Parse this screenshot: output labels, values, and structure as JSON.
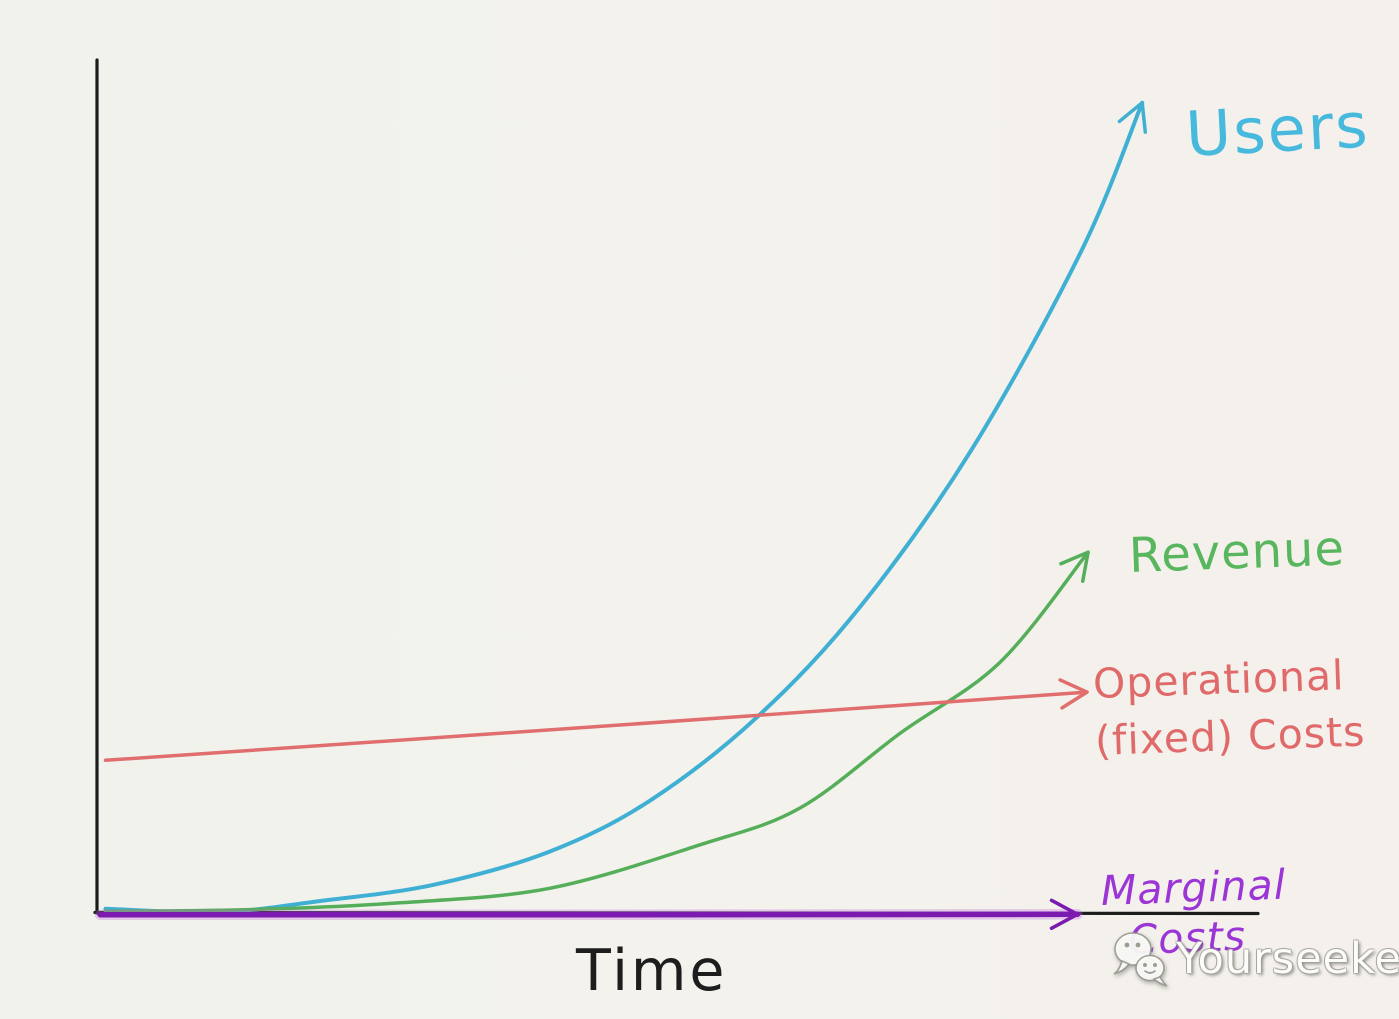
{
  "page": {
    "background": "#f3f2ec",
    "axis_color": "#1c1c1c"
  },
  "chart_data": {
    "type": "line",
    "style": "hand-drawn whiteboard sketch, qualitative (no numeric ticks)",
    "title": "",
    "xlabel": "Time",
    "ylabel": "",
    "x_range": [
      0,
      100
    ],
    "y_range": [
      0,
      100
    ],
    "grid": false,
    "legend": "inline colored labels at line tips, each line ends in an arrowhead",
    "series": [
      {
        "name": "Users",
        "color": "#3fb0d4",
        "stroke_width": 4,
        "arrow": true,
        "shape": "exponential growth, steepest curve",
        "points": [
          [
            0.8,
            0.5
          ],
          [
            11.6,
            0.1
          ],
          [
            21,
            1.4
          ],
          [
            31.7,
            3.3
          ],
          [
            42.7,
            7.2
          ],
          [
            52.2,
            13.2
          ],
          [
            62.3,
            23
          ],
          [
            72,
            35.9
          ],
          [
            82.5,
            54.3
          ],
          [
            92.9,
            77.7
          ],
          [
            98.6,
            95
          ]
        ]
      },
      {
        "name": "Revenue",
        "color": "#55ae59",
        "stroke_width": 3.5,
        "arrow": true,
        "shape": "exponential growth, lags Users",
        "points": [
          [
            0.8,
            0.2
          ],
          [
            14.4,
            0.4
          ],
          [
            28.6,
            1.2
          ],
          [
            42.7,
            2.9
          ],
          [
            56.9,
            8
          ],
          [
            66.3,
            12.3
          ],
          [
            75.8,
            21.1
          ],
          [
            85.2,
            29.4
          ],
          [
            93.5,
            42.3
          ]
        ]
      },
      {
        "name": "Operational (fixed) Costs",
        "color": "#e06e6e",
        "stroke_width": 3.5,
        "arrow": true,
        "shape": "nearly flat straight line, slight upward slope; crossed by Users then Revenue",
        "points": [
          [
            0.8,
            17.9
          ],
          [
            50,
            22.1
          ],
          [
            93.4,
            25.9
          ]
        ]
      },
      {
        "name": "Marginal Costs",
        "color": "#7a1aae",
        "halo": "#c06ee0",
        "stroke_width": 5.5,
        "arrow": true,
        "shape": "flat at zero, drawn along the x-axis",
        "points": [
          [
            0.3,
            -0.2
          ],
          [
            50,
            -0.2
          ],
          [
            92.5,
            -0.15
          ]
        ]
      }
    ]
  },
  "labels": {
    "users": {
      "text": "Users",
      "color": "#47b9dd"
    },
    "revenue": {
      "text": "Revenue",
      "color": "#58b65e"
    },
    "operational_line1": {
      "text": "Operational",
      "color": "#e06a6a"
    },
    "operational_line2": {
      "text": "(fixed) Costs",
      "color": "#e06a6a"
    },
    "marginal_line1": {
      "text": "Marginal",
      "color": "#9b35d6"
    },
    "marginal_line2": {
      "text": "Costs",
      "color": "#9b35d6"
    },
    "time": {
      "text": "Time",
      "color": "#1d1d1d"
    }
  },
  "watermark": {
    "text": "Yourseeker",
    "color": "#fcfcfa",
    "icon": "wechat-chat-bubbles-icon"
  }
}
